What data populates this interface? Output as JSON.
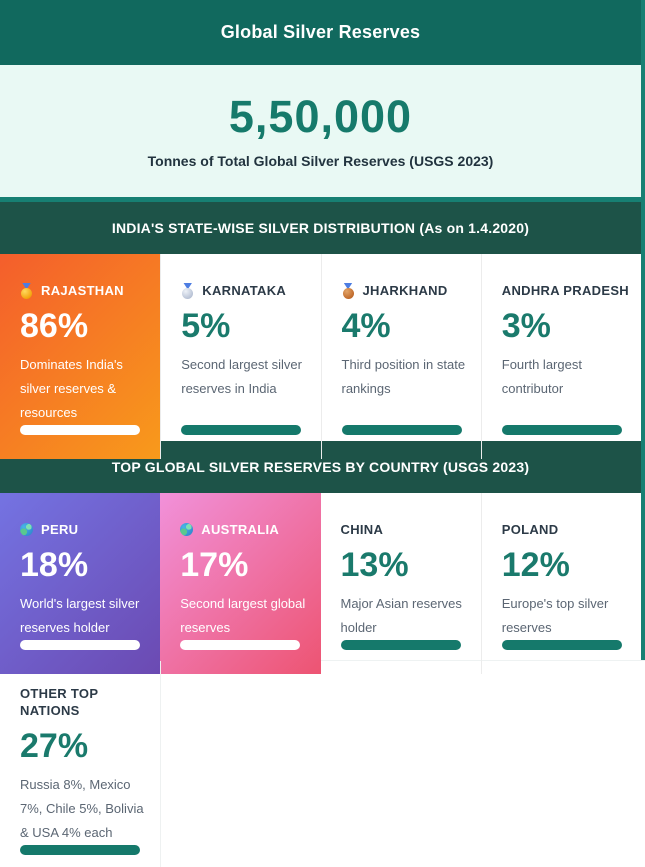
{
  "theme": {
    "page_bg": "#178073",
    "header_bg": "#11695e",
    "hero_bg": "#e9f9f4",
    "section_bar_bg": "#1d5348",
    "accent_teal": "#1a7a6c",
    "pill_teal": "#15796b",
    "card_name_color": "#2c3a47",
    "card_desc_color": "#5b6673",
    "orange_gradient": [
      "#f45e2c",
      "#f89a1b"
    ],
    "purple_gradient": [
      "#7473e2",
      "#6b4ab2"
    ],
    "pink_gradient": [
      "#f191da",
      "#ed5472"
    ]
  },
  "header": {
    "title": "Global Silver Reserves"
  },
  "hero": {
    "value": "5,50,000",
    "caption": "Tonnes of Total Global Silver Reserves (USGS 2023)"
  },
  "india_section": {
    "header": "INDIA'S STATE-WISE SILVER DISTRIBUTION (As on 1.4.2020)",
    "cards": [
      {
        "name": "RAJASTHAN",
        "icon": "gold-medal",
        "percent": "86%",
        "desc": "Dominates India's silver reserves & resources"
      },
      {
        "name": "KARNATAKA",
        "icon": "silver-medal",
        "percent": "5%",
        "desc": "Second largest silver reserves in India"
      },
      {
        "name": "JHARKHAND",
        "icon": "bronze-medal",
        "percent": "4%",
        "desc": "Third position in state rankings"
      },
      {
        "name": "ANDHRA PRADESH",
        "icon": "none",
        "percent": "3%",
        "desc": "Fourth largest contributor"
      }
    ]
  },
  "global_section": {
    "header": "TOP GLOBAL SILVER RESERVES BY COUNTRY (USGS 2023)",
    "cards": [
      {
        "name": "PERU",
        "icon": "globe",
        "percent": "18%",
        "desc": "World's largest silver reserves holder"
      },
      {
        "name": "AUSTRALIA",
        "icon": "globe",
        "percent": "17%",
        "desc": "Second largest global reserves"
      },
      {
        "name": "CHINA",
        "icon": "none",
        "percent": "13%",
        "desc": "Major Asian reserves holder"
      },
      {
        "name": "POLAND",
        "icon": "none",
        "percent": "12%",
        "desc": "Europe's top silver reserves"
      },
      {
        "name": "OTHER TOP NATIONS",
        "icon": "none",
        "percent": "27%",
        "desc": "Russia 8%, Mexico 7%, Chile 5%, Bolivia & USA 4% each"
      }
    ]
  },
  "chart_data": [
    {
      "type": "table",
      "title": "INDIA'S STATE-WISE SILVER DISTRIBUTION (As on 1.4.2020)",
      "categories": [
        "Rajasthan",
        "Karnataka",
        "Jharkhand",
        "Andhra Pradesh"
      ],
      "values": [
        86,
        5,
        4,
        3
      ],
      "unit": "%"
    },
    {
      "type": "table",
      "title": "TOP GLOBAL SILVER RESERVES BY COUNTRY (USGS 2023)",
      "categories": [
        "Peru",
        "Australia",
        "China",
        "Poland",
        "Other top nations"
      ],
      "values": [
        18,
        17,
        13,
        12,
        27
      ],
      "unit": "%",
      "annotations": [
        "Russia 8%, Mexico 7%, Chile 5%, Bolivia & USA 4% each"
      ],
      "total_reserves_tonnes": "5,50,000",
      "source": "USGS 2023"
    }
  ]
}
